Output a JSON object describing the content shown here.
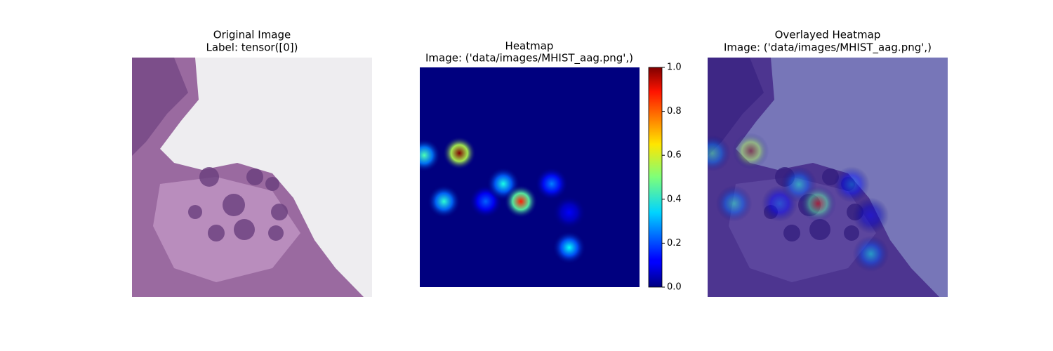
{
  "chart_data": [
    {
      "type": "image",
      "title": "Original Image",
      "subtitle": "Label: tensor([0])"
    },
    {
      "type": "heatmap",
      "title": "Heatmap",
      "subtitle": "Image: ('data/images/MHIST_aag.png',)",
      "x": [
        0.02,
        0.18,
        0.11,
        0.3,
        0.38,
        0.46,
        0.6,
        0.68,
        0.68
      ],
      "y": [
        0.4,
        0.39,
        0.61,
        0.61,
        0.53,
        0.61,
        0.53,
        0.82,
        0.66
      ],
      "values": [
        0.45,
        1.0,
        0.42,
        0.22,
        0.4,
        0.85,
        0.25,
        0.38,
        0.12
      ],
      "xlim": [
        0,
        1
      ],
      "ylim": [
        0,
        1
      ],
      "clim": [
        0,
        1
      ],
      "cticks": [
        {
          "value": 0,
          "label": "0.0"
        },
        {
          "value": 0.2,
          "label": "0.2"
        },
        {
          "value": 0.4,
          "label": "0.4"
        },
        {
          "value": 0.6,
          "label": "0.6"
        },
        {
          "value": 0.8,
          "label": "0.8"
        },
        {
          "value": 1,
          "label": "1.0"
        }
      ]
    },
    {
      "type": "overlay",
      "title": "Overlayed Heatmap",
      "subtitle": "Image: ('data/images/MHIST_aag.png',)"
    }
  ]
}
